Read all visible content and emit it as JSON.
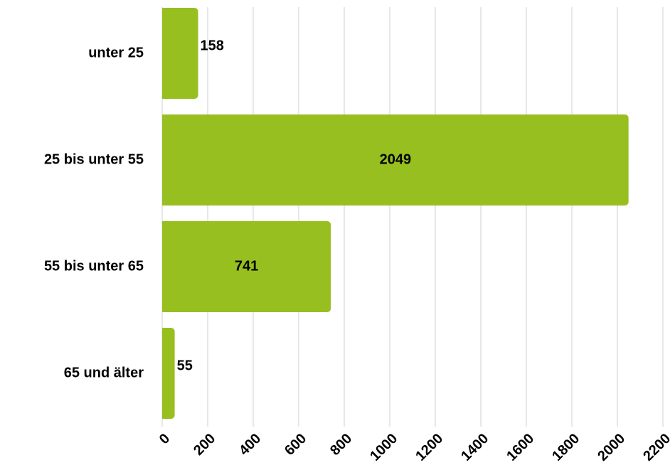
{
  "chart_data": {
    "type": "bar",
    "orientation": "horizontal",
    "categories": [
      "unter 25",
      "25 bis unter 55",
      "55 bis unter 65",
      "65 und älter"
    ],
    "values": [
      158,
      2049,
      741,
      55
    ],
    "color": "#97bf20",
    "xlim": [
      0,
      2200
    ],
    "xticks": [
      0,
      200,
      400,
      600,
      800,
      1000,
      1200,
      1400,
      1600,
      1800,
      2000,
      2200
    ],
    "grid": true
  }
}
